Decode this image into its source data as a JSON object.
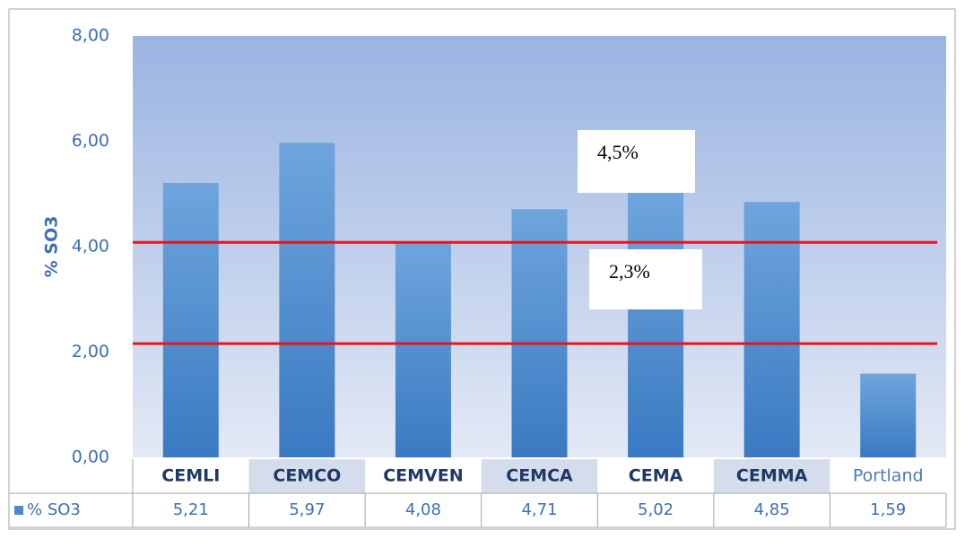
{
  "chart_data": {
    "type": "bar",
    "y_label": "% SO3",
    "categories": [
      "CEMLI",
      "CEMCO",
      "CEMVEN",
      "CEMCA",
      "CEMA",
      "CEMMA",
      "Portland"
    ],
    "series": [
      {
        "name": "% SO3",
        "color": "#4a88cf",
        "values": [
          5.21,
          5.97,
          4.08,
          4.71,
          5.02,
          4.85,
          1.59
        ],
        "value_labels": [
          "5,21",
          "5,97",
          "4,08",
          "4,71",
          "5,02",
          "4,85",
          "1,59"
        ]
      }
    ],
    "ylim": [
      0,
      8
    ],
    "yticks": [
      {
        "value": 0,
        "label": "0,00"
      },
      {
        "value": 2,
        "label": "2,00"
      },
      {
        "value": 4,
        "label": "4,00"
      },
      {
        "value": 6,
        "label": "6,00"
      },
      {
        "value": 8,
        "label": "8,00"
      }
    ],
    "reference_lines": [
      4.08,
      2.16
    ],
    "reference_color": "#e8141b",
    "annotations": [
      "4,5%",
      "2,3%"
    ]
  }
}
